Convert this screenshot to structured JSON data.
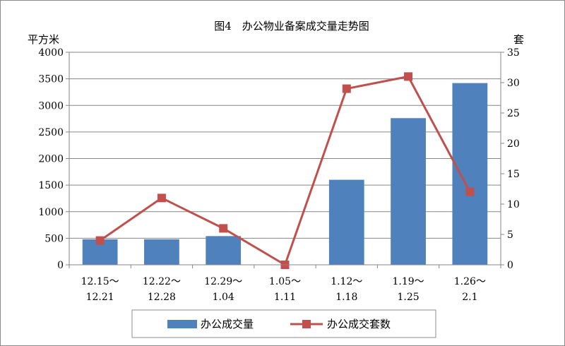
{
  "chart_data": {
    "type": "bar+line",
    "title": "图4　办公物业备案成交量走势图",
    "left_axis": {
      "unit": "平方米",
      "ylim": [
        0,
        4000
      ],
      "ticks": [
        "0",
        "500",
        "1000",
        "1500",
        "2000",
        "2500",
        "3000",
        "3500",
        "4000"
      ]
    },
    "right_axis": {
      "unit": "套",
      "ylim": [
        0,
        35
      ],
      "ticks": [
        "0",
        "5",
        "10",
        "15",
        "20",
        "25",
        "30",
        "35"
      ]
    },
    "categories": [
      [
        "12.15～",
        "12.21"
      ],
      [
        "12.22～",
        "12.28"
      ],
      [
        "12.29～",
        "1.04"
      ],
      [
        "1.05～",
        "1.11"
      ],
      [
        "1.12～",
        "1.18"
      ],
      [
        "1.19～",
        "1.25"
      ],
      [
        "1.26～",
        "2.1"
      ]
    ],
    "series": [
      {
        "name": "办公成交量",
        "kind": "bar",
        "axis": "left",
        "color": "#4f81bd",
        "values": [
          480,
          480,
          540,
          0,
          1600,
          2760,
          3420
        ]
      },
      {
        "name": "办公成交套数",
        "kind": "line",
        "axis": "right",
        "color": "#c0504d",
        "values": [
          4,
          11,
          6,
          0,
          29,
          31,
          12
        ]
      }
    ],
    "grid": true,
    "legend_position": "bottom"
  }
}
